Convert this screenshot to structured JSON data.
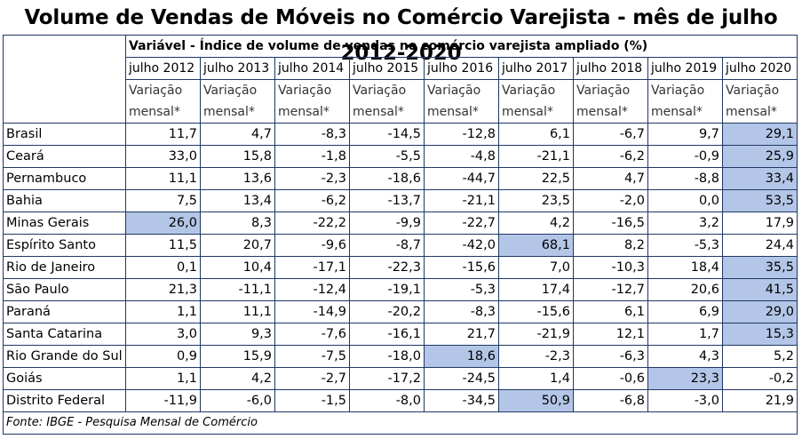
{
  "title": "Volume de Vendas de Móveis no Comércio Varejista - mês de julho 2012-2020",
  "variable_label": "Variável - Índice de volume de vendas no comércio varejista ampliado (%)",
  "years": [
    "julho 2012",
    "julho 2013",
    "julho 2014",
    "julho 2015",
    "julho 2016",
    "julho 2017",
    "julho 2018",
    "julho 2019",
    "julho 2020"
  ],
  "sub_label": "Variação mensal*",
  "rows": [
    {
      "state": "Brasil",
      "values": [
        "11,7",
        "4,7",
        "-8,3",
        "-14,5",
        "-12,8",
        "6,1",
        "-6,7",
        "9,7",
        "29,1"
      ],
      "highlight": 8
    },
    {
      "state": "Ceará",
      "values": [
        "33,0",
        "15,8",
        "-1,8",
        "-5,5",
        "-4,8",
        "-21,1",
        "-6,2",
        "-0,9",
        "25,9"
      ],
      "highlight": 8
    },
    {
      "state": "Pernambuco",
      "values": [
        "11,1",
        "13,6",
        "-2,3",
        "-18,6",
        "-44,7",
        "22,5",
        "4,7",
        "-8,8",
        "33,4"
      ],
      "highlight": 8
    },
    {
      "state": "Bahia",
      "values": [
        "7,5",
        "13,4",
        "-6,2",
        "-13,7",
        "-21,1",
        "23,5",
        "-2,0",
        "0,0",
        "53,5"
      ],
      "highlight": 8
    },
    {
      "state": "Minas Gerais",
      "values": [
        "26,0",
        "8,3",
        "-22,2",
        "-9,9",
        "-22,7",
        "4,2",
        "-16,5",
        "3,2",
        "17,9"
      ],
      "highlight": 0
    },
    {
      "state": "Espírito Santo",
      "values": [
        "11,5",
        "20,7",
        "-9,6",
        "-8,7",
        "-42,0",
        "68,1",
        "8,2",
        "-5,3",
        "24,4"
      ],
      "highlight": 5
    },
    {
      "state": "Rio de Janeiro",
      "values": [
        "0,1",
        "10,4",
        "-17,1",
        "-22,3",
        "-15,6",
        "7,0",
        "-10,3",
        "18,4",
        "35,5"
      ],
      "highlight": 8
    },
    {
      "state": "São Paulo",
      "values": [
        "21,3",
        "-11,1",
        "-12,4",
        "-19,1",
        "-5,3",
        "17,4",
        "-12,7",
        "20,6",
        "41,5"
      ],
      "highlight": 8
    },
    {
      "state": "Paraná",
      "values": [
        "1,1",
        "11,1",
        "-14,9",
        "-20,2",
        "-8,3",
        "-15,6",
        "6,1",
        "6,9",
        "29,0"
      ],
      "highlight": 8
    },
    {
      "state": "Santa Catarina",
      "values": [
        "3,0",
        "9,3",
        "-7,6",
        "-16,1",
        "21,7",
        "-21,9",
        "12,1",
        "1,7",
        "15,3"
      ],
      "highlight": 8
    },
    {
      "state": "Rio Grande do Sul",
      "values": [
        "0,9",
        "15,9",
        "-7,5",
        "-18,0",
        "18,6",
        "-2,3",
        "-6,3",
        "4,3",
        "5,2"
      ],
      "highlight": 4
    },
    {
      "state": "Goiás",
      "values": [
        "1,1",
        "4,2",
        "-2,7",
        "-17,2",
        "-24,5",
        "1,4",
        "-0,6",
        "23,3",
        "-0,2"
      ],
      "highlight": 7
    },
    {
      "state": "Distrito Federal",
      "values": [
        "-11,9",
        "-6,0",
        "-1,5",
        "-8,0",
        "-34,5",
        "50,9",
        "-6,8",
        "-3,0",
        "21,9"
      ],
      "highlight": 5
    }
  ],
  "source": "Fonte: IBGE - Pesquisa Mensal de Comércio",
  "colors": {
    "highlight": "#b4c6e7",
    "border": "#1f3864"
  }
}
